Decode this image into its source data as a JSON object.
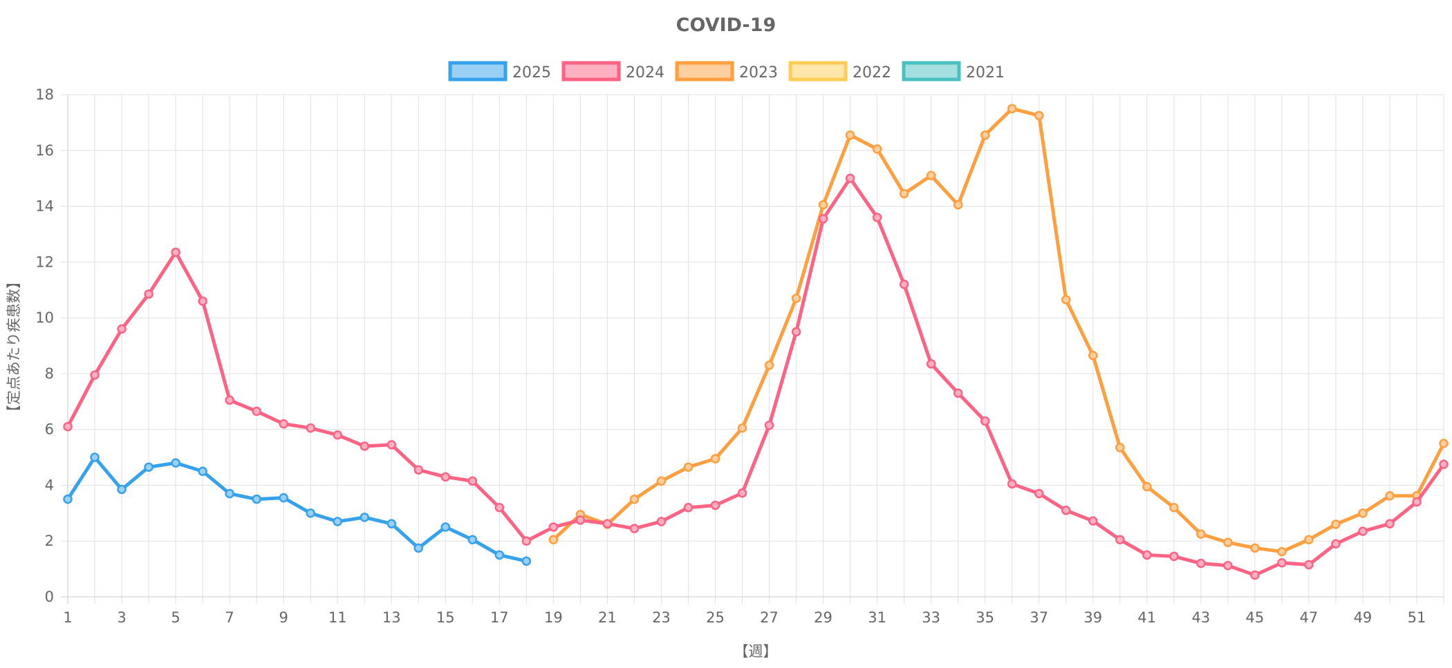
{
  "chart_data": {
    "type": "line",
    "title": "COVID-19",
    "xlabel": "【週】",
    "ylabel": "【定点あたり疾患数】",
    "xlim": [
      1,
      52
    ],
    "ylim": [
      0,
      18
    ],
    "yticks": [
      0,
      2,
      4,
      6,
      8,
      10,
      12,
      14,
      16,
      18
    ],
    "xticks": [
      1,
      3,
      5,
      7,
      9,
      11,
      13,
      15,
      17,
      19,
      21,
      23,
      25,
      27,
      29,
      31,
      33,
      35,
      37,
      39,
      41,
      43,
      45,
      47,
      49,
      51
    ],
    "grid": true,
    "legend_position": "top",
    "series": [
      {
        "name": "2025",
        "color": "#36a2eb",
        "fill": "#9ad0f5",
        "x": [
          1,
          2,
          3,
          4,
          5,
          6,
          7,
          8,
          9,
          10,
          11,
          12,
          13,
          14,
          15,
          16,
          17,
          18
        ],
        "values": [
          3.5,
          5.0,
          3.85,
          4.65,
          4.8,
          4.5,
          3.7,
          3.5,
          3.55,
          3.0,
          2.7,
          2.85,
          2.62,
          1.75,
          2.5,
          2.05,
          1.5,
          1.28
        ]
      },
      {
        "name": "2024",
        "color": "#ff6384",
        "fill": "#ffb1c1",
        "x": [
          1,
          2,
          3,
          4,
          5,
          6,
          7,
          8,
          9,
          10,
          11,
          12,
          13,
          14,
          15,
          16,
          17,
          18,
          19,
          20,
          21,
          22,
          23,
          24,
          25,
          26,
          27,
          28,
          29,
          30,
          31,
          32,
          33,
          34,
          35,
          36,
          37,
          38,
          39,
          40,
          41,
          42,
          43,
          44,
          45,
          46,
          47,
          48,
          49,
          50,
          51,
          52
        ],
        "values": [
          6.1,
          7.95,
          9.6,
          10.85,
          12.35,
          10.6,
          7.05,
          6.65,
          6.2,
          6.05,
          5.8,
          5.4,
          5.45,
          4.55,
          4.3,
          4.15,
          3.2,
          2.0,
          2.5,
          2.75,
          2.62,
          2.45,
          2.7,
          3.2,
          3.28,
          3.72,
          6.15,
          9.5,
          13.55,
          15.0,
          13.6,
          11.2,
          8.35,
          7.3,
          6.3,
          4.05,
          3.7,
          3.1,
          2.72,
          2.05,
          1.5,
          1.45,
          1.2,
          1.12,
          0.78,
          1.22,
          1.15,
          1.9,
          2.35,
          2.62,
          3.4,
          4.75
        ]
      },
      {
        "name": "2023",
        "color": "#ff9f40",
        "fill": "#ffcf9f",
        "x": [
          19,
          20,
          21,
          22,
          23,
          24,
          25,
          26,
          27,
          28,
          29,
          30,
          31,
          32,
          33,
          34,
          35,
          36,
          37,
          38,
          39,
          40,
          41,
          42,
          43,
          44,
          45,
          46,
          47,
          48,
          49,
          50,
          51,
          52
        ],
        "values": [
          2.05,
          2.95,
          2.6,
          3.5,
          4.15,
          4.65,
          4.95,
          6.05,
          8.3,
          10.7,
          14.05,
          16.55,
          16.05,
          14.45,
          15.1,
          14.05,
          16.55,
          17.5,
          17.25,
          10.65,
          8.65,
          5.35,
          3.95,
          3.2,
          2.25,
          1.95,
          1.75,
          1.62,
          2.05,
          2.6,
          3.0,
          3.62,
          3.62,
          5.5
        ]
      },
      {
        "name": "2022",
        "color": "#ffcd56",
        "fill": "#ffe6aa",
        "x": [],
        "values": []
      },
      {
        "name": "2021",
        "color": "#4bc0c0",
        "fill": "#a5dfdf",
        "x": [],
        "values": []
      }
    ]
  }
}
